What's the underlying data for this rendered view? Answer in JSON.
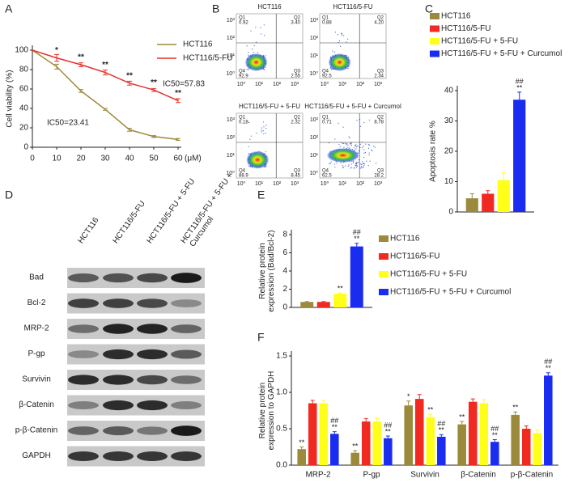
{
  "chart_data": [
    {
      "type": "line",
      "panel": "A",
      "ylabel": [
        "Cell viability (%)"
      ],
      "x": [
        0,
        10,
        20,
        30,
        40,
        50,
        60
      ],
      "xlim": [
        0,
        60
      ],
      "xticks": [
        0,
        10,
        20,
        30,
        40,
        50,
        60
      ],
      "xunit": "(μM)",
      "ylim": [
        0,
        100
      ],
      "yticks": [
        0,
        20,
        40,
        60,
        80,
        100
      ],
      "series": [
        {
          "name": "HCT116",
          "color": "#9c8a3c",
          "values": [
            100,
            83,
            58,
            39,
            18,
            11,
            8
          ],
          "errors": [
            0,
            2.5,
            1.5,
            1,
            1.5,
            1,
            1
          ],
          "labels": [
            null,
            null,
            null,
            null,
            null,
            null,
            null
          ]
        },
        {
          "name": "HCT116/5-FU",
          "color": "#e8312a",
          "values": [
            100,
            92,
            85,
            77,
            66,
            59,
            48
          ],
          "errors": [
            0,
            3.5,
            2,
            2.5,
            2,
            1.5,
            2
          ],
          "labels": [
            null,
            "*",
            "**",
            "**",
            "**",
            "**",
            "**"
          ]
        }
      ],
      "annotations": [
        "IC50=23.41",
        "IC50=57.83"
      ]
    },
    {
      "type": "bar",
      "panel": "C",
      "ylabel": [
        "Apoptosis rate %"
      ],
      "categories": [
        null
      ],
      "ylim": [
        0,
        40
      ],
      "yticks": [
        0,
        10,
        20,
        30,
        40
      ],
      "series": [
        {
          "name": "HCT116",
          "color": "#9c8a3c",
          "values": [
            4.5
          ],
          "errors": [
            1.5
          ],
          "labels": [
            null
          ]
        },
        {
          "name": "HCT116/5-FU",
          "color": "#f02a20",
          "values": [
            6
          ],
          "errors": [
            1
          ],
          "labels": [
            null
          ]
        },
        {
          "name": "HCT116/5-FU + 5-FU",
          "color": "#ffff1a",
          "values": [
            10.5
          ],
          "errors": [
            2.5
          ],
          "labels": [
            null
          ]
        },
        {
          "name": "HCT116/5-FU + 5-FU + Curcumol",
          "color": "#1a2cf0",
          "values": [
            37
          ],
          "errors": [
            2.5
          ],
          "labels": [
            [
              "##",
              "**"
            ]
          ]
        }
      ]
    },
    {
      "type": "bar",
      "panel": "E",
      "ylabel": [
        "Relative protein",
        "expression (Bad/Bcl-2)"
      ],
      "categories": [
        null
      ],
      "ylim": [
        0,
        8
      ],
      "yticks": [
        0,
        2,
        4,
        6,
        8
      ],
      "series": [
        {
          "name": "HCT116",
          "color": "#9c8a3c",
          "values": [
            0.6
          ],
          "errors": [
            0.05
          ],
          "labels": [
            null
          ]
        },
        {
          "name": "HCT116/5-FU",
          "color": "#f02a20",
          "values": [
            0.6
          ],
          "errors": [
            0.05
          ],
          "labels": [
            null
          ]
        },
        {
          "name": "HCT116/5-FU + 5-FU",
          "color": "#ffff1a",
          "values": [
            1.5
          ],
          "errors": [
            0.1
          ],
          "labels": [
            [
              "**"
            ]
          ]
        },
        {
          "name": "HCT116/5-FU + 5-FU + Curcumol",
          "color": "#1a2cf0",
          "values": [
            6.7
          ],
          "errors": [
            0.35
          ],
          "labels": [
            [
              "##",
              "**"
            ]
          ]
        }
      ]
    },
    {
      "type": "bar",
      "panel": "F",
      "ylabel": [
        "Relative protein",
        "expression to GAPDH"
      ],
      "categories": [
        "MRP-2",
        "P-gp",
        "Survivin",
        "β-Catenin",
        "p-β-Catenin"
      ],
      "ylim": [
        0,
        1.5
      ],
      "yticks": [
        {
          "value": 0,
          "label": "0.0"
        },
        0.5,
        {
          "value": 1,
          "label": "1.0"
        },
        1.5
      ],
      "series": [
        {
          "name": "HCT116",
          "color": "#9c8a3c",
          "values": [
            0.22,
            0.17,
            0.82,
            0.56,
            0.69
          ],
          "errors": [
            0.03,
            0.03,
            0.06,
            0.04,
            0.04
          ],
          "labels": [
            [
              "**"
            ],
            [
              "**"
            ],
            [
              "*"
            ],
            [
              "**"
            ],
            [
              "**"
            ]
          ]
        },
        {
          "name": "HCT116/5-FU",
          "color": "#f02a20",
          "values": [
            0.85,
            0.6,
            0.91,
            0.87,
            0.5
          ],
          "errors": [
            0.04,
            0.04,
            0.06,
            0.04,
            0.04
          ],
          "labels": [
            null,
            null,
            null,
            null,
            null
          ]
        },
        {
          "name": "HCT116/5-FU + 5-FU",
          "color": "#ffff1a",
          "values": [
            0.85,
            0.6,
            0.66,
            0.85,
            0.44
          ],
          "errors": [
            0.04,
            0.04,
            0.04,
            0.05,
            0.04
          ],
          "labels": [
            null,
            null,
            [
              "**"
            ],
            null,
            null
          ]
        },
        {
          "name": "HCT116/5-FU + 5-FU + Curcumol",
          "color": "#1a2cf0",
          "values": [
            0.43,
            0.37,
            0.39,
            0.32,
            1.23
          ],
          "errors": [
            0.03,
            0.03,
            0.03,
            0.03,
            0.04
          ],
          "labels": [
            [
              "##",
              "**"
            ],
            [
              "##",
              "**"
            ],
            [
              "##",
              "**"
            ],
            [
              "##",
              "**"
            ],
            [
              "##",
              "**"
            ]
          ]
        }
      ]
    }
  ],
  "flow_cytometry": {
    "panel": "B",
    "axis_ticks": [
      "10⁰",
      "10¹",
      "10²",
      "10³"
    ],
    "q_labels": [
      "Q1",
      "Q2",
      "Q4",
      "Q3"
    ],
    "plots": [
      {
        "title": "HCT116",
        "q_values": [
          "0.92",
          "3.40",
          "92.9",
          "2.55"
        ]
      },
      {
        "title": "HCT116/5-FU",
        "q_values": [
          "0.88",
          "4.20",
          "92.5",
          "2.34"
        ]
      },
      {
        "title": "HCT116/5-FU + 5-FU",
        "q_values": [
          "0.18",
          "2.32",
          "88.9",
          "8.45"
        ]
      },
      {
        "title": "HCT116/5-FU + 5-FU + Curcumol",
        "q_values": [
          "0.71",
          "8.78",
          "62.5",
          "28.2"
        ]
      }
    ]
  },
  "western_blot": {
    "panel": "D",
    "lanes": [
      [
        "HCT116"
      ],
      [
        "HCT116/5-FU"
      ],
      [
        "HCT116/5-FU + 5-FU"
      ],
      [
        "HCT116/5-FU + 5-FU +",
        "Curcumol"
      ]
    ],
    "proteins": [
      "Bad",
      "Bcl-2",
      "MRP-2",
      "P-gp",
      "Survivin",
      "β-Catenin",
      "p-β-Catenin",
      "GAPDH"
    ]
  }
}
